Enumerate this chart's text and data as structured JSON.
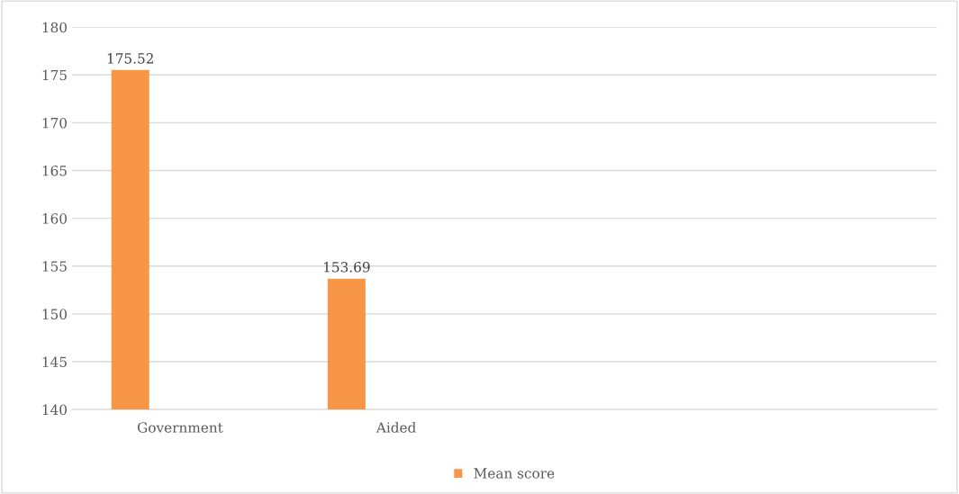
{
  "chart_data": {
    "type": "bar",
    "categories": [
      "Government",
      "Aided",
      null,
      null
    ],
    "series": [
      {
        "name": "Mean score",
        "color": "#f79646",
        "values": [
          175.52,
          153.69,
          null,
          null
        ]
      }
    ],
    "ylim": [
      140,
      180
    ],
    "yticks": [
      140,
      145,
      150,
      155,
      160,
      165,
      170,
      175,
      180
    ],
    "grid": "y",
    "legend": "bottom",
    "data_labels": true
  }
}
